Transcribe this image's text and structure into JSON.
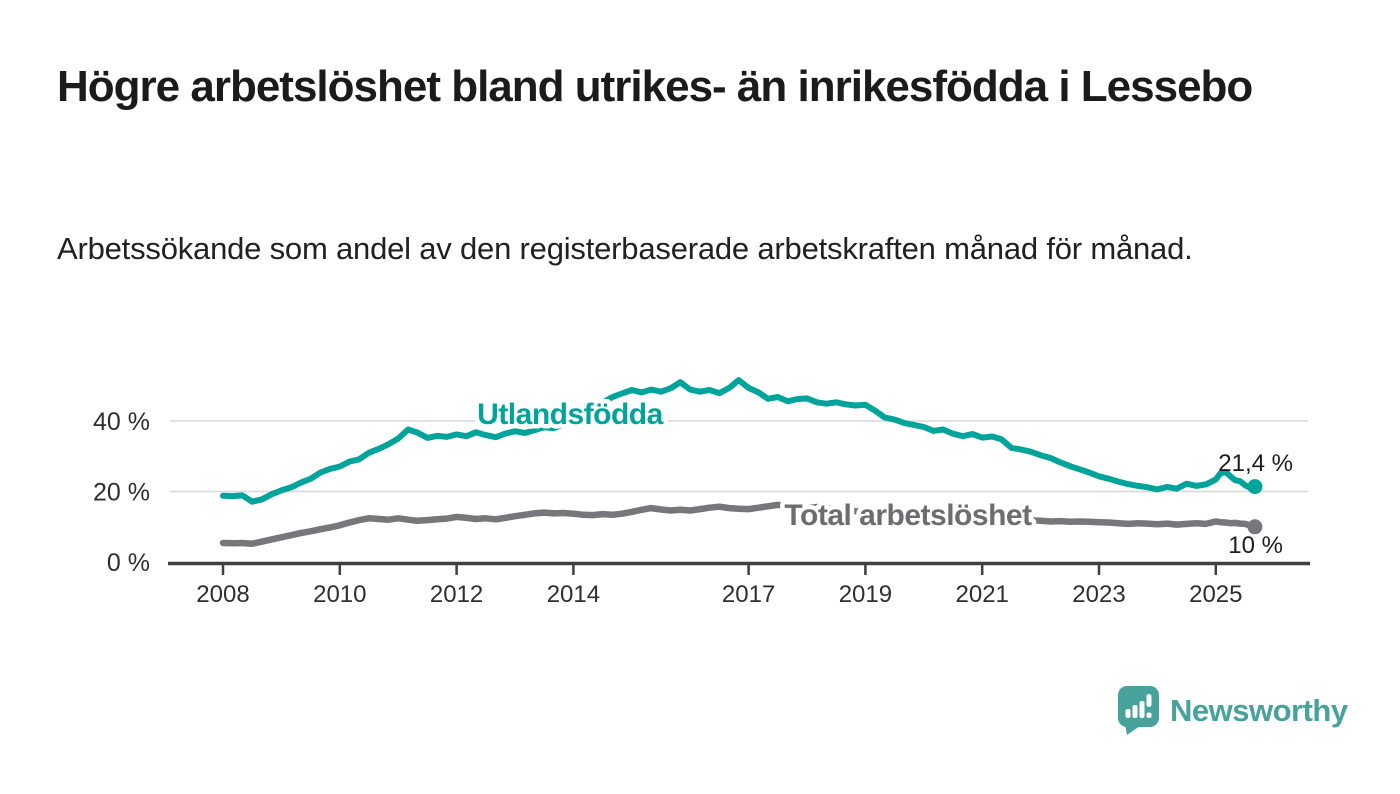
{
  "header": {
    "title": "Högre arbetslöshet bland utrikes- än inrikesfödda i Lessebo",
    "subtitle": "Arbetssökande som andel av den registerbaserade arbetskraften månad för månad."
  },
  "chart_data": {
    "type": "line",
    "unit": "%",
    "grid": "horizontal",
    "legend_position": "inline-labels-on-lines",
    "x_axis": {
      "tick_years": [
        2008,
        2010,
        2012,
        2014,
        2017,
        2019,
        2021,
        2023,
        2025
      ],
      "tick_labels": [
        "2008",
        "2010",
        "2012",
        "2014",
        "2017",
        "2019",
        "2021",
        "2023",
        "2025"
      ],
      "range": [
        2007.1,
        2026.6
      ]
    },
    "y_axis": {
      "ticks": [
        0,
        20,
        40
      ],
      "tick_labels": [
        "0 %",
        "20 %",
        "40 %"
      ],
      "range": [
        0,
        55
      ]
    },
    "colors": {
      "axis": "#404040",
      "grid": "#d8d8d8",
      "tick_text": "#2f2f2f",
      "value_text": "#1d1d1d"
    },
    "series": [
      {
        "name": "Utlandsfödda",
        "color": "#00a49a",
        "label_color": "#00a49a",
        "end_value_label": "21,4 %",
        "points": [
          [
            2008.0,
            18.8
          ],
          [
            2008.17,
            18.7
          ],
          [
            2008.33,
            18.9
          ],
          [
            2008.5,
            17.1
          ],
          [
            2008.67,
            17.8
          ],
          [
            2008.83,
            19.2
          ],
          [
            2009.0,
            20.3
          ],
          [
            2009.17,
            21.2
          ],
          [
            2009.33,
            22.5
          ],
          [
            2009.5,
            23.6
          ],
          [
            2009.67,
            25.4
          ],
          [
            2009.83,
            26.4
          ],
          [
            2010.0,
            27.1
          ],
          [
            2010.17,
            28.5
          ],
          [
            2010.33,
            29.1
          ],
          [
            2010.5,
            31.0
          ],
          [
            2010.67,
            32.1
          ],
          [
            2010.83,
            33.4
          ],
          [
            2011.0,
            35.0
          ],
          [
            2011.17,
            37.6
          ],
          [
            2011.33,
            36.7
          ],
          [
            2011.5,
            35.2
          ],
          [
            2011.67,
            35.8
          ],
          [
            2011.83,
            35.5
          ],
          [
            2012.0,
            36.2
          ],
          [
            2012.17,
            35.7
          ],
          [
            2012.33,
            36.8
          ],
          [
            2012.5,
            36.0
          ],
          [
            2012.67,
            35.4
          ],
          [
            2012.83,
            36.4
          ],
          [
            2013.0,
            37.1
          ],
          [
            2013.17,
            36.6
          ],
          [
            2013.33,
            37.4
          ],
          [
            2013.5,
            38.2
          ],
          [
            2013.67,
            38.0
          ],
          [
            2013.83,
            39.0
          ],
          [
            2014.0,
            40.8
          ],
          [
            2014.17,
            42.5
          ],
          [
            2014.33,
            44.2
          ],
          [
            2014.5,
            45.2
          ],
          [
            2014.67,
            46.8
          ],
          [
            2014.83,
            47.8
          ],
          [
            2015.0,
            48.8
          ],
          [
            2015.17,
            48.1
          ],
          [
            2015.33,
            48.9
          ],
          [
            2015.5,
            48.3
          ],
          [
            2015.67,
            49.3
          ],
          [
            2015.83,
            51.0
          ],
          [
            2016.0,
            48.9
          ],
          [
            2016.17,
            48.3
          ],
          [
            2016.33,
            48.8
          ],
          [
            2016.5,
            47.9
          ],
          [
            2016.67,
            49.4
          ],
          [
            2016.83,
            51.6
          ],
          [
            2017.0,
            49.4
          ],
          [
            2017.17,
            48.1
          ],
          [
            2017.33,
            46.3
          ],
          [
            2017.5,
            46.8
          ],
          [
            2017.67,
            45.6
          ],
          [
            2017.83,
            46.2
          ],
          [
            2018.0,
            46.4
          ],
          [
            2018.17,
            45.3
          ],
          [
            2018.33,
            44.9
          ],
          [
            2018.5,
            45.3
          ],
          [
            2018.67,
            44.7
          ],
          [
            2018.83,
            44.4
          ],
          [
            2019.0,
            44.6
          ],
          [
            2019.17,
            42.9
          ],
          [
            2019.33,
            41.0
          ],
          [
            2019.5,
            40.4
          ],
          [
            2019.67,
            39.4
          ],
          [
            2019.83,
            38.9
          ],
          [
            2020.0,
            38.3
          ],
          [
            2020.17,
            37.2
          ],
          [
            2020.33,
            37.6
          ],
          [
            2020.5,
            36.4
          ],
          [
            2020.67,
            35.7
          ],
          [
            2020.83,
            36.3
          ],
          [
            2021.0,
            35.3
          ],
          [
            2021.17,
            35.6
          ],
          [
            2021.33,
            34.8
          ],
          [
            2021.5,
            32.4
          ],
          [
            2021.67,
            31.9
          ],
          [
            2021.83,
            31.3
          ],
          [
            2022.0,
            30.3
          ],
          [
            2022.17,
            29.5
          ],
          [
            2022.33,
            28.3
          ],
          [
            2022.5,
            27.2
          ],
          [
            2022.67,
            26.3
          ],
          [
            2022.83,
            25.4
          ],
          [
            2023.0,
            24.3
          ],
          [
            2023.17,
            23.6
          ],
          [
            2023.33,
            22.8
          ],
          [
            2023.5,
            22.1
          ],
          [
            2023.67,
            21.6
          ],
          [
            2023.83,
            21.2
          ],
          [
            2024.0,
            20.6
          ],
          [
            2024.17,
            21.3
          ],
          [
            2024.33,
            20.8
          ],
          [
            2024.5,
            22.2
          ],
          [
            2024.67,
            21.6
          ],
          [
            2024.83,
            22.0
          ],
          [
            2025.0,
            23.4
          ],
          [
            2025.08,
            25.2
          ],
          [
            2025.17,
            25.6
          ],
          [
            2025.25,
            24.3
          ],
          [
            2025.33,
            23.2
          ],
          [
            2025.42,
            22.9
          ],
          [
            2025.5,
            21.8
          ],
          [
            2025.58,
            21.1
          ],
          [
            2025.67,
            21.4
          ]
        ]
      },
      {
        "name": "Total arbetslöshet",
        "color": "#77777b",
        "label_color": "#6d6d71",
        "end_value_label": "10 %",
        "points": [
          [
            2008.0,
            5.4
          ],
          [
            2008.17,
            5.3
          ],
          [
            2008.33,
            5.4
          ],
          [
            2008.5,
            5.2
          ],
          [
            2008.67,
            5.8
          ],
          [
            2008.83,
            6.4
          ],
          [
            2009.0,
            7.0
          ],
          [
            2009.17,
            7.6
          ],
          [
            2009.33,
            8.2
          ],
          [
            2009.5,
            8.7
          ],
          [
            2009.67,
            9.3
          ],
          [
            2009.83,
            9.8
          ],
          [
            2010.0,
            10.4
          ],
          [
            2010.17,
            11.2
          ],
          [
            2010.33,
            11.9
          ],
          [
            2010.5,
            12.4
          ],
          [
            2010.67,
            12.2
          ],
          [
            2010.83,
            12.0
          ],
          [
            2011.0,
            12.4
          ],
          [
            2011.17,
            12.0
          ],
          [
            2011.33,
            11.7
          ],
          [
            2011.5,
            11.9
          ],
          [
            2011.67,
            12.1
          ],
          [
            2011.83,
            12.3
          ],
          [
            2012.0,
            12.8
          ],
          [
            2012.17,
            12.5
          ],
          [
            2012.33,
            12.2
          ],
          [
            2012.5,
            12.4
          ],
          [
            2012.67,
            12.1
          ],
          [
            2012.83,
            12.5
          ],
          [
            2013.0,
            13.0
          ],
          [
            2013.17,
            13.4
          ],
          [
            2013.33,
            13.8
          ],
          [
            2013.5,
            14.0
          ],
          [
            2013.67,
            13.8
          ],
          [
            2013.83,
            13.9
          ],
          [
            2014.0,
            13.7
          ],
          [
            2014.17,
            13.4
          ],
          [
            2014.33,
            13.3
          ],
          [
            2014.5,
            13.6
          ],
          [
            2014.67,
            13.4
          ],
          [
            2014.83,
            13.7
          ],
          [
            2015.0,
            14.2
          ],
          [
            2015.17,
            14.8
          ],
          [
            2015.33,
            15.3
          ],
          [
            2015.5,
            14.9
          ],
          [
            2015.67,
            14.6
          ],
          [
            2015.83,
            14.8
          ],
          [
            2016.0,
            14.6
          ],
          [
            2016.17,
            15.0
          ],
          [
            2016.33,
            15.4
          ],
          [
            2016.5,
            15.7
          ],
          [
            2016.67,
            15.3
          ],
          [
            2016.83,
            15.1
          ],
          [
            2017.0,
            15.0
          ],
          [
            2017.17,
            15.4
          ],
          [
            2017.33,
            15.8
          ],
          [
            2017.5,
            16.2
          ],
          [
            2017.67,
            15.9
          ],
          [
            2017.83,
            15.5
          ],
          [
            2018.0,
            15.2
          ],
          [
            2018.17,
            15.6
          ],
          [
            2018.33,
            15.3
          ],
          [
            2018.5,
            14.9
          ],
          [
            2018.67,
            14.7
          ],
          [
            2018.83,
            14.4
          ],
          [
            2019.0,
            14.2
          ],
          [
            2019.17,
            13.9
          ],
          [
            2019.33,
            13.6
          ],
          [
            2019.5,
            13.4
          ],
          [
            2019.67,
            13.2
          ],
          [
            2019.83,
            13.0
          ],
          [
            2020.0,
            12.9
          ],
          [
            2020.17,
            12.7
          ],
          [
            2020.33,
            13.1
          ],
          [
            2020.5,
            12.8
          ],
          [
            2020.67,
            12.5
          ],
          [
            2020.83,
            12.3
          ],
          [
            2021.0,
            12.2
          ],
          [
            2021.17,
            12.0
          ],
          [
            2021.33,
            11.9
          ],
          [
            2021.5,
            11.8
          ],
          [
            2021.67,
            11.9
          ],
          [
            2021.83,
            11.8
          ],
          [
            2022.0,
            11.7
          ],
          [
            2022.17,
            11.5
          ],
          [
            2022.33,
            11.6
          ],
          [
            2022.5,
            11.4
          ],
          [
            2022.67,
            11.5
          ],
          [
            2022.83,
            11.4
          ],
          [
            2023.0,
            11.3
          ],
          [
            2023.17,
            11.2
          ],
          [
            2023.33,
            11.0
          ],
          [
            2023.5,
            10.8
          ],
          [
            2023.67,
            11.0
          ],
          [
            2023.83,
            10.9
          ],
          [
            2024.0,
            10.7
          ],
          [
            2024.17,
            10.9
          ],
          [
            2024.33,
            10.6
          ],
          [
            2024.5,
            10.8
          ],
          [
            2024.67,
            11.0
          ],
          [
            2024.83,
            10.8
          ],
          [
            2025.0,
            11.5
          ],
          [
            2025.08,
            11.3
          ],
          [
            2025.17,
            11.2
          ],
          [
            2025.25,
            11.0
          ],
          [
            2025.33,
            11.1
          ],
          [
            2025.42,
            10.9
          ],
          [
            2025.5,
            10.8
          ],
          [
            2025.58,
            10.4
          ],
          [
            2025.67,
            10.0
          ]
        ]
      }
    ]
  },
  "branding": {
    "name": "Newsworthy",
    "color": "#47a29b",
    "icon": "speech-bubble-bar-chart-icon"
  }
}
